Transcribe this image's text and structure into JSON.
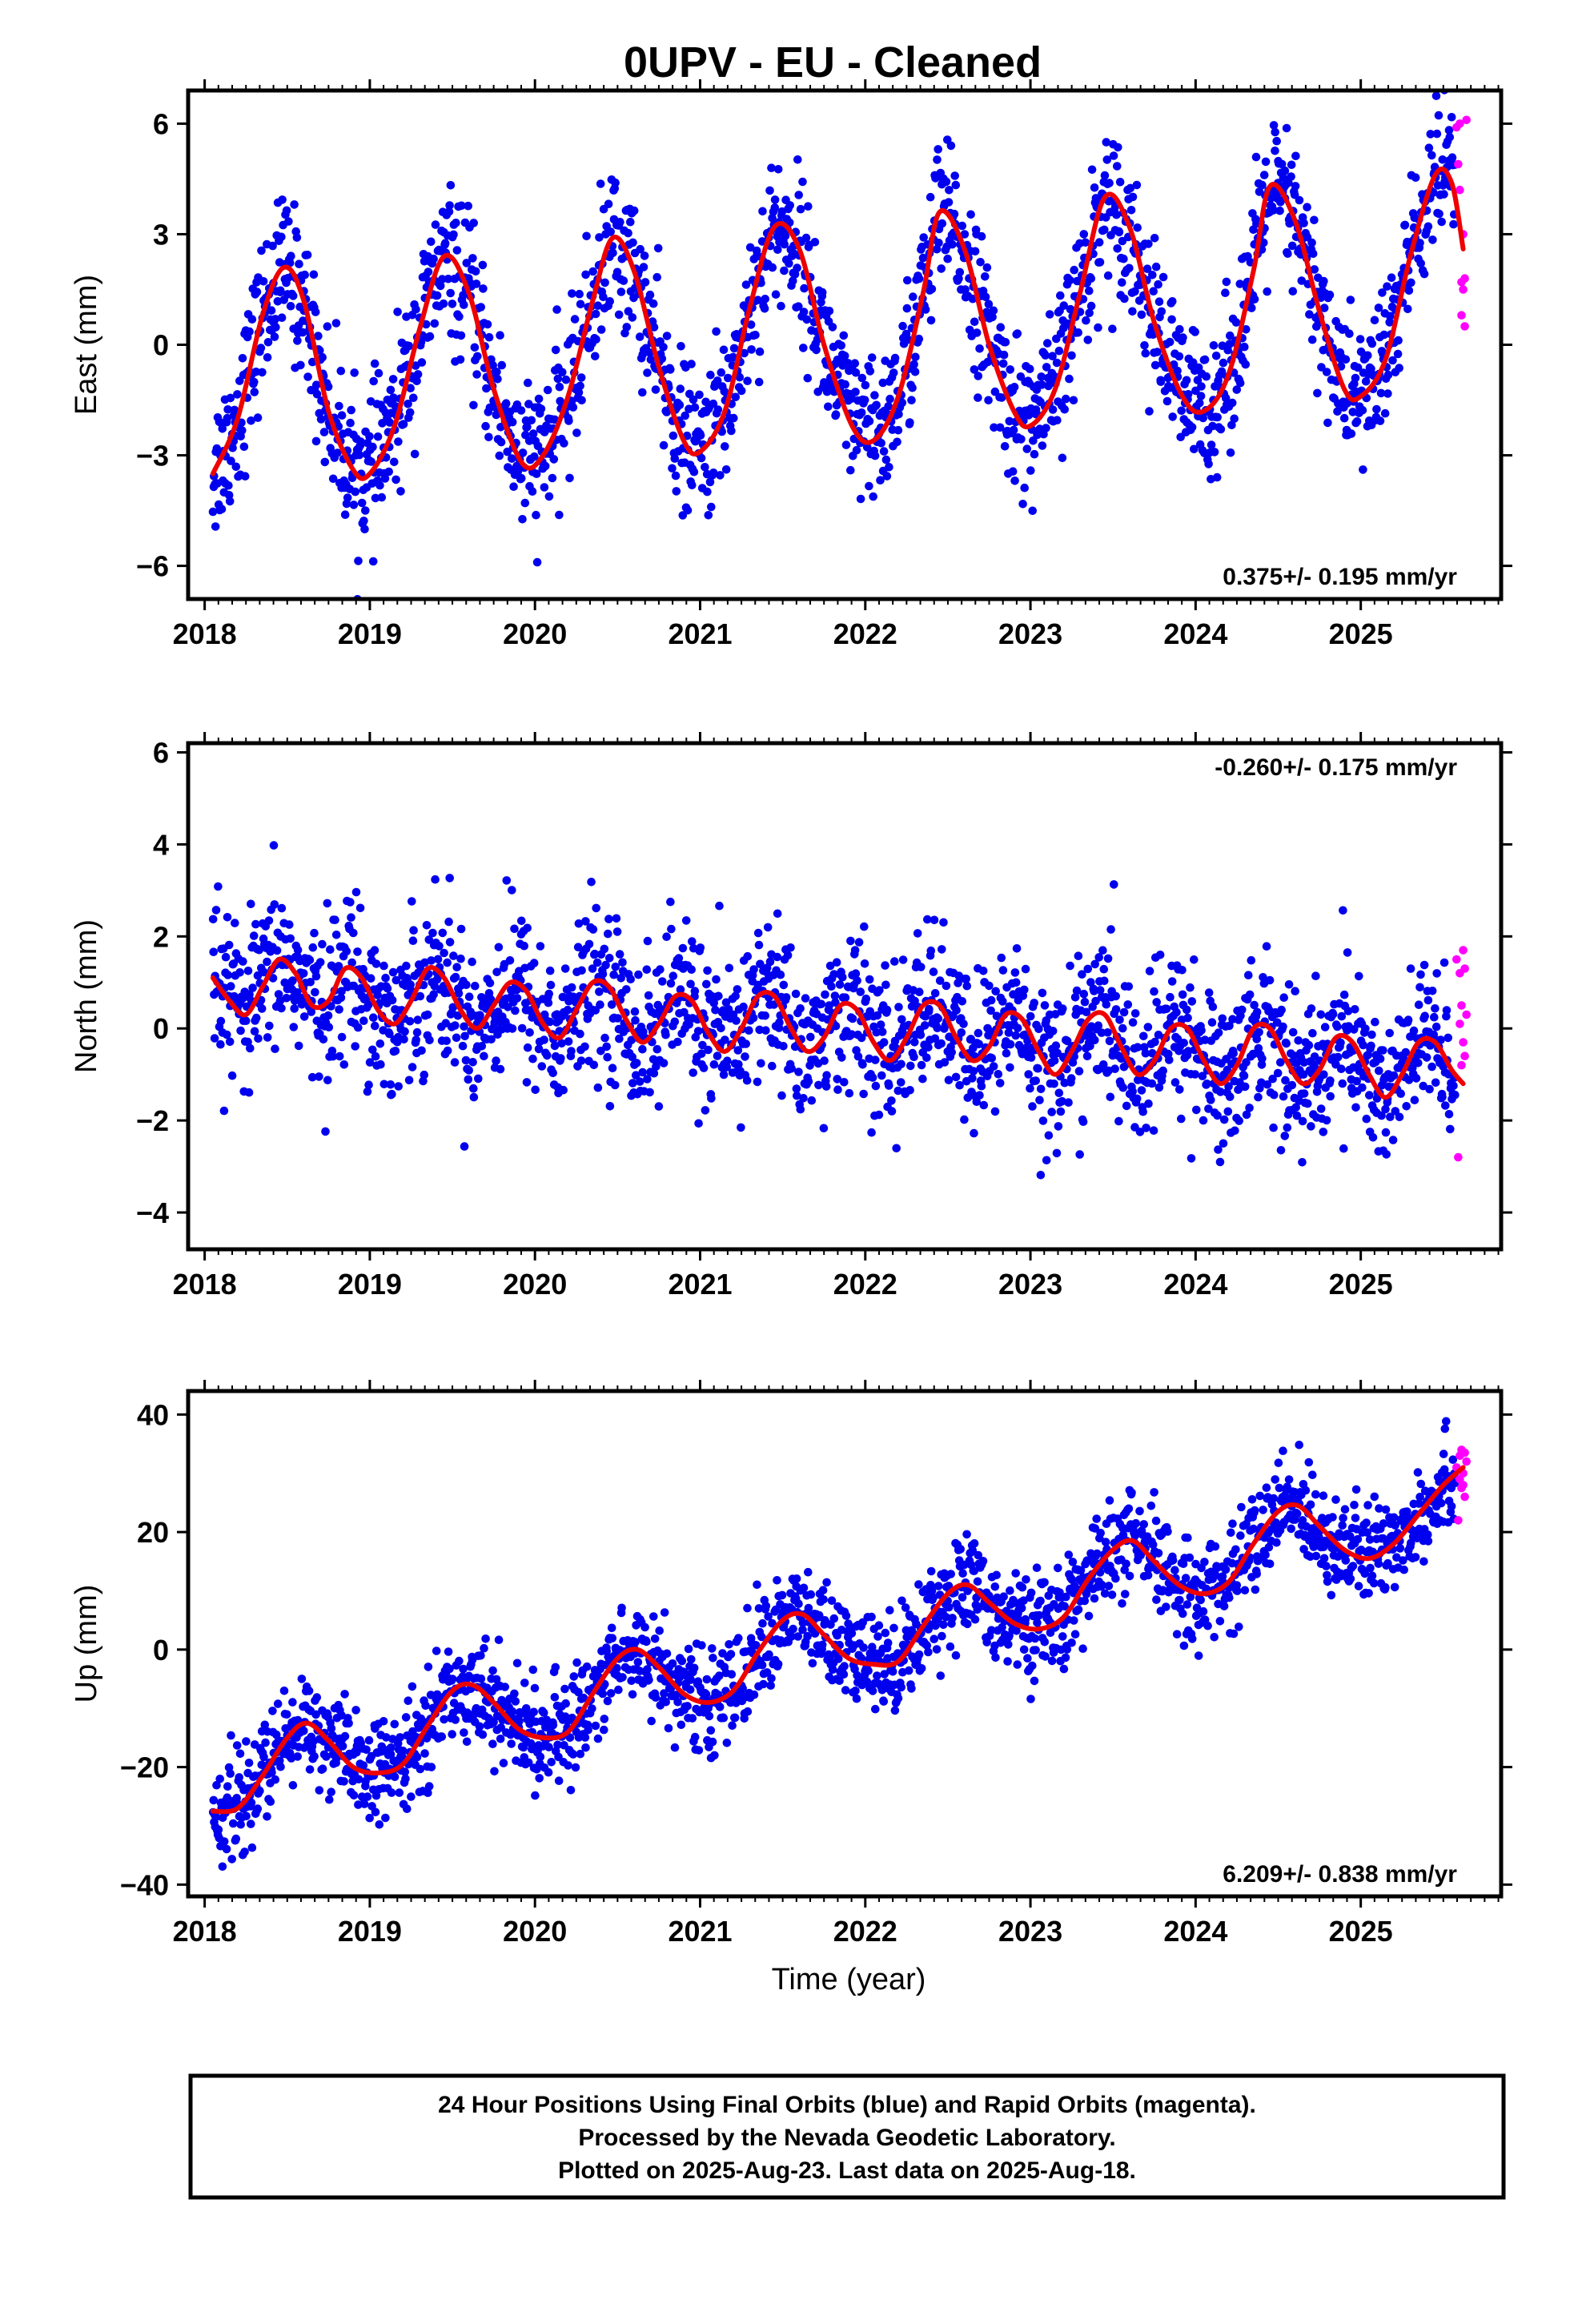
{
  "title": "0UPV  - EU - Cleaned",
  "x_axis_label": "Time (year)",
  "colors": {
    "final": "#0000ee",
    "rapid": "#ff00ff",
    "model": "#ee0000",
    "frame": "#000000"
  },
  "footer": {
    "line1": "24 Hour Positions Using Final Orbits (blue) and Rapid Orbits (magenta).",
    "line2": "Processed by the Nevada Geodetic Laboratory.",
    "line3": "Plotted on 2025-Aug-23. Last data on 2025-Aug-18."
  },
  "chart_data": [
    {
      "type": "scatter",
      "component": "east",
      "ylabel": "East (mm)",
      "xlim": [
        2017.9,
        2025.85
      ],
      "ylim": [
        -6.9,
        6.9
      ],
      "xticks": [
        2018,
        2019,
        2020,
        2021,
        2022,
        2023,
        2024,
        2025
      ],
      "yticks": [
        -6,
        -3,
        0,
        3,
        6
      ],
      "rate_label": "0.375+/- 0.195 mm/yr",
      "rate_label_position": "bottom-right",
      "model": {
        "x": [
          2018.05,
          2018.2,
          2018.35,
          2018.48,
          2018.6,
          2018.75,
          2018.9,
          2019.0,
          2019.15,
          2019.3,
          2019.45,
          2019.6,
          2019.75,
          2019.92,
          2020.05,
          2020.2,
          2020.35,
          2020.47,
          2020.6,
          2020.75,
          2020.9,
          2021.0,
          2021.15,
          2021.3,
          2021.45,
          2021.6,
          2021.75,
          2021.92,
          2022.05,
          2022.2,
          2022.35,
          2022.45,
          2022.6,
          2022.75,
          2022.9,
          2023.0,
          2023.15,
          2023.3,
          2023.45,
          2023.6,
          2023.75,
          2023.92,
          2024.05,
          2024.2,
          2024.35,
          2024.45,
          2024.6,
          2024.75,
          2024.9,
          2025.0,
          2025.15,
          2025.3,
          2025.45,
          2025.55,
          2025.62
        ],
        "y": [
          -3.5,
          -2.0,
          0.8,
          2.1,
          1.2,
          -1.8,
          -3.4,
          -3.5,
          -2.2,
          0.4,
          2.4,
          1.4,
          -1.2,
          -3.2,
          -3.0,
          -1.4,
          1.2,
          2.9,
          2.0,
          -0.6,
          -2.6,
          -2.9,
          -1.8,
          1.0,
          3.2,
          2.6,
          0.0,
          -2.2,
          -2.6,
          -1.4,
          1.4,
          3.6,
          2.6,
          0.0,
          -1.8,
          -2.2,
          -1.2,
          1.4,
          4.0,
          3.2,
          0.6,
          -1.4,
          -1.8,
          -0.8,
          2.0,
          4.3,
          3.4,
          0.9,
          -1.2,
          -1.4,
          -0.4,
          2.4,
          4.6,
          4.4,
          2.6
        ]
      },
      "rapid": {
        "x": [
          2025.58,
          2025.59,
          2025.6,
          2025.6,
          2025.61,
          2025.61,
          2025.62,
          2025.62,
          2025.63,
          2025.63,
          2025.64
        ],
        "y": [
          5.9,
          4.9,
          6.0,
          4.2,
          1.7,
          0.8,
          1.5,
          3.0,
          0.5,
          1.8,
          6.1
        ]
      }
    },
    {
      "type": "scatter",
      "component": "north",
      "ylabel": "North (mm)",
      "xlim": [
        2017.9,
        2025.85
      ],
      "ylim": [
        -4.8,
        6.2
      ],
      "xticks": [
        2018,
        2019,
        2020,
        2021,
        2022,
        2023,
        2024,
        2025
      ],
      "yticks": [
        -4,
        -2,
        0,
        2,
        4,
        6
      ],
      "rate_label": "-0.260+/- 0.175 mm/yr",
      "rate_label_position": "top-right",
      "model": {
        "x": [
          2018.05,
          2018.15,
          2018.25,
          2018.35,
          2018.45,
          2018.55,
          2018.65,
          2018.75,
          2018.85,
          2018.95,
          2019.05,
          2019.15,
          2019.25,
          2019.35,
          2019.45,
          2019.55,
          2019.65,
          2019.75,
          2019.85,
          2019.95,
          2020.05,
          2020.15,
          2020.25,
          2020.35,
          2020.45,
          2020.55,
          2020.65,
          2020.75,
          2020.85,
          2020.95,
          2021.05,
          2021.15,
          2021.25,
          2021.35,
          2021.45,
          2021.55,
          2021.65,
          2021.75,
          2021.85,
          2021.95,
          2022.05,
          2022.15,
          2022.25,
          2022.35,
          2022.45,
          2022.55,
          2022.65,
          2022.75,
          2022.85,
          2022.95,
          2023.05,
          2023.15,
          2023.25,
          2023.35,
          2023.45,
          2023.55,
          2023.65,
          2023.75,
          2023.85,
          2023.95,
          2024.05,
          2024.15,
          2024.25,
          2024.35,
          2024.45,
          2024.55,
          2024.65,
          2024.75,
          2024.85,
          2024.95,
          2025.05,
          2025.15,
          2025.25,
          2025.35,
          2025.45,
          2025.55,
          2025.62
        ],
        "y": [
          1.1,
          0.6,
          0.3,
          0.9,
          1.5,
          1.2,
          0.5,
          0.6,
          1.3,
          1.1,
          0.4,
          0.1,
          0.6,
          1.3,
          1.1,
          0.4,
          0.0,
          0.5,
          1.0,
          0.8,
          0.1,
          -0.2,
          0.4,
          1.0,
          0.9,
          0.2,
          -0.3,
          0.1,
          0.7,
          0.6,
          -0.1,
          -0.5,
          0.0,
          0.7,
          0.7,
          0.0,
          -0.5,
          -0.2,
          0.5,
          0.4,
          -0.3,
          -0.7,
          -0.2,
          0.5,
          0.5,
          -0.2,
          -0.7,
          -0.4,
          0.3,
          0.2,
          -0.5,
          -1.0,
          -0.5,
          0.2,
          0.3,
          -0.4,
          -1.0,
          -0.7,
          0.0,
          0.0,
          -0.7,
          -1.2,
          -0.8,
          0.0,
          0.0,
          -0.7,
          -1.2,
          -0.9,
          -0.2,
          -0.3,
          -1.0,
          -1.5,
          -1.0,
          -0.3,
          -0.3,
          -0.9,
          -1.2
        ]
      },
      "rapid": {
        "x": [
          2025.58,
          2025.59,
          2025.6,
          2025.6,
          2025.61,
          2025.61,
          2025.62,
          2025.62,
          2025.63,
          2025.63,
          2025.64
        ],
        "y": [
          1.5,
          -2.8,
          1.2,
          0.1,
          -0.8,
          0.5,
          1.7,
          -0.3,
          1.3,
          -0.6,
          0.3
        ]
      }
    },
    {
      "type": "scatter",
      "component": "up",
      "ylabel": "Up (mm)",
      "xlim": [
        2017.9,
        2025.85
      ],
      "ylim": [
        -42,
        44
      ],
      "xticks": [
        2018,
        2019,
        2020,
        2021,
        2022,
        2023,
        2024,
        2025
      ],
      "yticks": [
        -40,
        -20,
        0,
        20,
        40
      ],
      "rate_label": "6.209+/- 0.838 mm/yr",
      "rate_label_position": "bottom-right",
      "model": {
        "x": [
          2018.05,
          2018.2,
          2018.35,
          2018.5,
          2018.62,
          2018.75,
          2018.9,
          2019.05,
          2019.2,
          2019.35,
          2019.5,
          2019.62,
          2019.75,
          2019.9,
          2020.05,
          2020.2,
          2020.35,
          2020.5,
          2020.62,
          2020.75,
          2020.9,
          2021.05,
          2021.2,
          2021.35,
          2021.5,
          2021.62,
          2021.75,
          2021.9,
          2022.05,
          2022.2,
          2022.35,
          2022.5,
          2022.62,
          2022.75,
          2022.9,
          2023.05,
          2023.2,
          2023.35,
          2023.5,
          2023.62,
          2023.75,
          2023.9,
          2024.05,
          2024.2,
          2024.35,
          2024.5,
          2024.62,
          2024.75,
          2024.9,
          2025.05,
          2025.2,
          2025.35,
          2025.5,
          2025.62
        ],
        "y": [
          -27.5,
          -27.0,
          -21.5,
          -15.0,
          -12.5,
          -15.5,
          -20.0,
          -21.0,
          -19.5,
          -13.0,
          -7.0,
          -6.0,
          -9.0,
          -13.5,
          -15.0,
          -14.0,
          -7.5,
          -1.5,
          0.0,
          -3.0,
          -7.5,
          -9.0,
          -7.0,
          -0.5,
          5.0,
          6.0,
          2.5,
          -1.5,
          -2.5,
          -2.0,
          4.0,
          9.5,
          11.0,
          8.0,
          4.5,
          3.5,
          5.5,
          12.0,
          17.0,
          18.5,
          15.0,
          11.0,
          9.5,
          11.5,
          18.0,
          23.5,
          24.5,
          21.0,
          17.0,
          15.5,
          18.0,
          23.0,
          28.0,
          31.0
        ]
      },
      "rapid": {
        "x": [
          2025.58,
          2025.59,
          2025.6,
          2025.6,
          2025.61,
          2025.61,
          2025.62,
          2025.62,
          2025.63,
          2025.63,
          2025.64
        ],
        "y": [
          31.0,
          22.0,
          33.0,
          29.0,
          27.5,
          34.0,
          30.0,
          28.0,
          33.5,
          26.0,
          32.0
        ]
      }
    }
  ]
}
